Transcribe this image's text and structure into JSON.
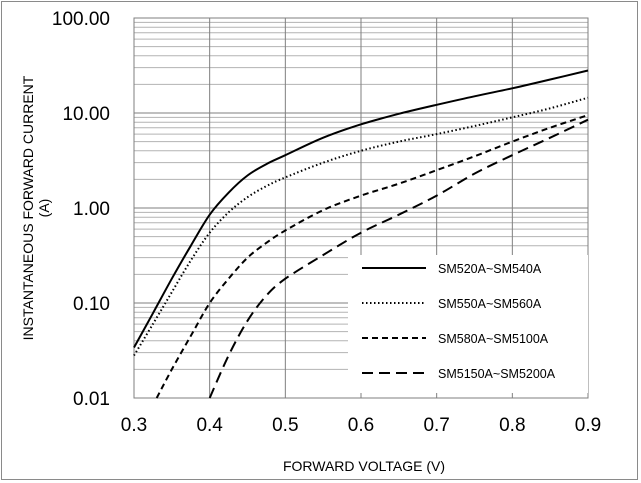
{
  "chart_data": {
    "type": "line",
    "title": "",
    "xlabel": "FORWARD VOLTAGE (V)",
    "ylabel_line1": "INSTANTANEOUS FORWARD CURRENT",
    "ylabel_line2": "(A)",
    "x_scale": "linear",
    "y_scale": "log",
    "xlim": [
      0.3,
      0.9
    ],
    "ylim": [
      0.01,
      100
    ],
    "x_ticks": [
      0.3,
      0.4,
      0.5,
      0.6,
      0.7,
      0.8,
      0.9
    ],
    "x_tick_labels": [
      "0.3",
      "0.4",
      "0.5",
      "0.6",
      "0.7",
      "0.8",
      "0.9"
    ],
    "y_ticks": [
      0.01,
      0.1,
      1,
      10,
      100
    ],
    "y_tick_labels": [
      "0.01",
      "0.10",
      "1.00",
      "10.00",
      "100.00"
    ],
    "grid": true,
    "legend_position": "bottom-right",
    "series": [
      {
        "name": "SM520A~SM540A",
        "line_style": "solid",
        "x": [
          0.3,
          0.325,
          0.35,
          0.375,
          0.4,
          0.425,
          0.45,
          0.475,
          0.5,
          0.55,
          0.6,
          0.65,
          0.7,
          0.75,
          0.8,
          0.85,
          0.9
        ],
        "y": [
          0.034,
          0.078,
          0.18,
          0.4,
          0.85,
          1.45,
          2.2,
          2.9,
          3.6,
          5.5,
          7.6,
          9.8,
          12.2,
          15.0,
          18.2,
          22.5,
          28.0
        ]
      },
      {
        "name": "SM550A~SM560A",
        "line_style": "dotted",
        "x": [
          0.3,
          0.325,
          0.35,
          0.375,
          0.4,
          0.425,
          0.45,
          0.475,
          0.5,
          0.55,
          0.6,
          0.65,
          0.7,
          0.75,
          0.8,
          0.85,
          0.9
        ],
        "y": [
          0.028,
          0.06,
          0.13,
          0.28,
          0.55,
          0.9,
          1.3,
          1.7,
          2.1,
          3.0,
          4.0,
          5.0,
          6.0,
          7.3,
          9.0,
          11.2,
          14.5
        ]
      },
      {
        "name": "SM580A~SM5100A",
        "line_style": "dashed",
        "x": [
          0.33,
          0.35,
          0.375,
          0.4,
          0.425,
          0.45,
          0.475,
          0.5,
          0.55,
          0.6,
          0.65,
          0.7,
          0.75,
          0.8,
          0.85,
          0.9
        ],
        "y": [
          0.01,
          0.02,
          0.045,
          0.1,
          0.18,
          0.3,
          0.43,
          0.58,
          0.95,
          1.35,
          1.8,
          2.5,
          3.5,
          5.0,
          7.0,
          9.5
        ]
      },
      {
        "name": "SM5150A~SM5200A",
        "line_style": "long-dashed",
        "x": [
          0.4,
          0.425,
          0.45,
          0.475,
          0.5,
          0.55,
          0.6,
          0.65,
          0.7,
          0.75,
          0.8,
          0.85,
          0.9
        ],
        "y": [
          0.01,
          0.028,
          0.065,
          0.12,
          0.18,
          0.32,
          0.55,
          0.85,
          1.35,
          2.3,
          3.6,
          5.5,
          8.5
        ]
      }
    ]
  }
}
